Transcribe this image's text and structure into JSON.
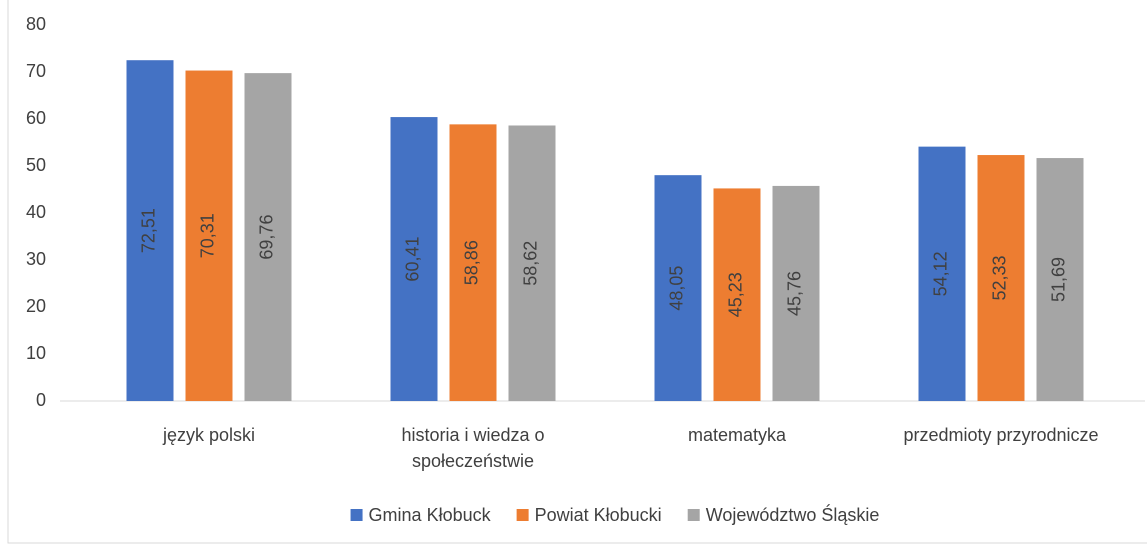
{
  "chart_data": {
    "type": "bar",
    "categories": [
      "język polski",
      "historia i wiedza o społeczeństwie",
      "matematyka",
      "przedmioty przyrodnicze"
    ],
    "series": [
      {
        "name": "Gmina Kłobuck",
        "color": "#4472c4",
        "values": [
          72.51,
          60.41,
          48.05,
          54.12
        ],
        "value_labels": [
          "72,51",
          "60,41",
          "48,05",
          "54,12"
        ]
      },
      {
        "name": "Powiat Kłobucki",
        "color": "#ed7d31",
        "values": [
          70.31,
          58.86,
          45.23,
          52.33
        ],
        "value_labels": [
          "70,31",
          "58,86",
          "45,23",
          "52,33"
        ]
      },
      {
        "name": "Województwo Śląskie",
        "color": "#a5a5a5",
        "values": [
          69.76,
          58.62,
          45.76,
          51.69
        ],
        "value_labels": [
          "69,76",
          "58,62",
          "45,76",
          "51,69"
        ]
      }
    ],
    "ylim": [
      0,
      80
    ],
    "yticks": [
      0,
      10,
      20,
      30,
      40,
      50,
      60,
      70,
      80
    ],
    "grid": false,
    "legend": "bottom"
  }
}
